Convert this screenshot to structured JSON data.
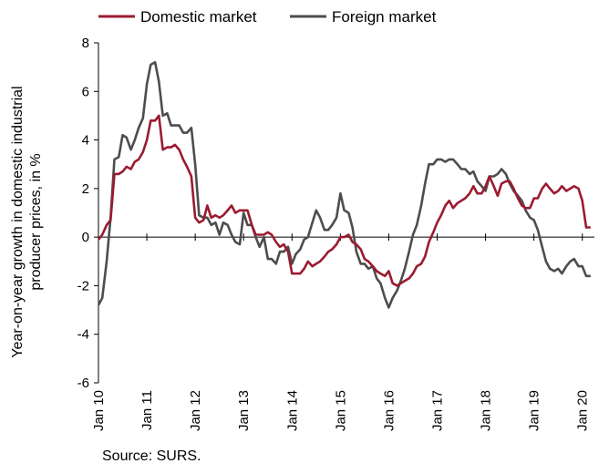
{
  "chart_data": {
    "type": "line",
    "ylabel_lines": [
      "Year-on-year growth in domestic industrial",
      "producer prices, in %"
    ],
    "ylim": [
      -6,
      8
    ],
    "yticks": [
      -6,
      -4,
      -2,
      0,
      2,
      4,
      6,
      8
    ],
    "xlim": [
      2010,
      2020.25
    ],
    "xticks": [
      {
        "value": 2010,
        "label": "Jan 10"
      },
      {
        "value": 2011,
        "label": "Jan 11"
      },
      {
        "value": 2012,
        "label": "Jan 12"
      },
      {
        "value": 2013,
        "label": "Jan 13"
      },
      {
        "value": 2014,
        "label": "Jan 14"
      },
      {
        "value": 2015,
        "label": "Jan 15"
      },
      {
        "value": 2016,
        "label": "Jan 16"
      },
      {
        "value": 2017,
        "label": "Jan 17"
      },
      {
        "value": 2018,
        "label": "Jan 18"
      },
      {
        "value": 2019,
        "label": "Jan 19"
      },
      {
        "value": 2020,
        "label": "Jan 20"
      }
    ],
    "grid": false,
    "legend_position": "top-left",
    "series": [
      {
        "name": "Domestic market",
        "color": "#9b1b30",
        "x": [
          2010.0,
          2010.08,
          2010.17,
          2010.25,
          2010.33,
          2010.42,
          2010.5,
          2010.58,
          2010.67,
          2010.75,
          2010.83,
          2010.92,
          2011.0,
          2011.08,
          2011.17,
          2011.25,
          2011.33,
          2011.42,
          2011.5,
          2011.58,
          2011.67,
          2011.75,
          2011.83,
          2011.92,
          2012.0,
          2012.08,
          2012.17,
          2012.25,
          2012.33,
          2012.42,
          2012.5,
          2012.58,
          2012.67,
          2012.75,
          2012.83,
          2012.92,
          2013.0,
          2013.08,
          2013.17,
          2013.25,
          2013.33,
          2013.42,
          2013.5,
          2013.58,
          2013.67,
          2013.75,
          2013.83,
          2013.92,
          2014.0,
          2014.08,
          2014.17,
          2014.25,
          2014.33,
          2014.42,
          2014.5,
          2014.58,
          2014.67,
          2014.75,
          2014.83,
          2014.92,
          2015.0,
          2015.08,
          2015.17,
          2015.25,
          2015.33,
          2015.42,
          2015.5,
          2015.58,
          2015.67,
          2015.75,
          2015.83,
          2015.92,
          2016.0,
          2016.08,
          2016.17,
          2016.25,
          2016.33,
          2016.42,
          2016.5,
          2016.58,
          2016.67,
          2016.75,
          2016.83,
          2016.92,
          2017.0,
          2017.08,
          2017.17,
          2017.25,
          2017.33,
          2017.42,
          2017.5,
          2017.58,
          2017.67,
          2017.75,
          2017.83,
          2017.92,
          2018.0,
          2018.08,
          2018.17,
          2018.25,
          2018.33,
          2018.42,
          2018.5,
          2018.58,
          2018.67,
          2018.75,
          2018.83,
          2018.92,
          2019.0,
          2019.08,
          2019.17,
          2019.25,
          2019.33,
          2019.42,
          2019.5,
          2019.58,
          2019.67,
          2019.75,
          2019.83,
          2019.92,
          2020.0,
          2020.08,
          2020.17
        ],
        "y": [
          -0.1,
          0.1,
          0.5,
          0.7,
          2.6,
          2.6,
          2.7,
          2.9,
          2.8,
          3.1,
          3.2,
          3.5,
          4.0,
          4.8,
          4.8,
          5.0,
          3.6,
          3.7,
          3.7,
          3.8,
          3.6,
          3.2,
          2.9,
          2.5,
          0.8,
          0.6,
          0.7,
          1.3,
          0.8,
          0.9,
          0.8,
          0.9,
          1.1,
          1.3,
          1.0,
          1.1,
          1.1,
          1.1,
          0.5,
          0.1,
          0.1,
          0.1,
          0.2,
          0.1,
          -0.2,
          -0.4,
          -0.3,
          -0.6,
          -1.5,
          -1.5,
          -1.5,
          -1.3,
          -1.0,
          -1.2,
          -1.1,
          -1.0,
          -0.8,
          -0.6,
          -0.5,
          -0.3,
          0.0,
          0.0,
          0.1,
          -0.2,
          -0.3,
          -0.5,
          -0.9,
          -1.0,
          -1.2,
          -1.4,
          -1.5,
          -1.6,
          -1.4,
          -1.9,
          -2.0,
          -1.9,
          -1.8,
          -1.7,
          -1.5,
          -1.2,
          -1.1,
          -0.8,
          -0.2,
          0.2,
          0.6,
          0.9,
          1.3,
          1.5,
          1.2,
          1.4,
          1.5,
          1.6,
          1.8,
          2.1,
          1.8,
          1.8,
          2.1,
          2.5,
          2.1,
          1.7,
          2.2,
          2.3,
          2.3,
          2.0,
          1.6,
          1.3,
          1.2,
          1.2,
          1.6,
          1.6,
          2.0,
          2.2,
          2.0,
          1.8,
          1.9,
          2.1,
          1.9,
          2.0,
          2.1,
          2.0,
          1.5,
          0.4,
          0.4
        ]
      },
      {
        "name": "Foreign market",
        "color": "#4d4d4d",
        "x": [
          2010.0,
          2010.08,
          2010.17,
          2010.25,
          2010.33,
          2010.42,
          2010.5,
          2010.58,
          2010.67,
          2010.75,
          2010.83,
          2010.92,
          2011.0,
          2011.08,
          2011.17,
          2011.25,
          2011.33,
          2011.42,
          2011.5,
          2011.58,
          2011.67,
          2011.75,
          2011.83,
          2011.92,
          2012.0,
          2012.08,
          2012.17,
          2012.25,
          2012.33,
          2012.42,
          2012.5,
          2012.58,
          2012.67,
          2012.75,
          2012.83,
          2012.92,
          2013.0,
          2013.08,
          2013.17,
          2013.25,
          2013.33,
          2013.42,
          2013.5,
          2013.58,
          2013.67,
          2013.75,
          2013.83,
          2013.92,
          2014.0,
          2014.08,
          2014.17,
          2014.25,
          2014.33,
          2014.42,
          2014.5,
          2014.58,
          2014.67,
          2014.75,
          2014.83,
          2014.92,
          2015.0,
          2015.08,
          2015.17,
          2015.25,
          2015.33,
          2015.42,
          2015.5,
          2015.58,
          2015.67,
          2015.75,
          2015.83,
          2015.92,
          2016.0,
          2016.08,
          2016.17,
          2016.25,
          2016.33,
          2016.42,
          2016.5,
          2016.58,
          2016.67,
          2016.75,
          2016.83,
          2016.92,
          2017.0,
          2017.08,
          2017.17,
          2017.25,
          2017.33,
          2017.42,
          2017.5,
          2017.58,
          2017.67,
          2017.75,
          2017.83,
          2017.92,
          2018.0,
          2018.08,
          2018.17,
          2018.25,
          2018.33,
          2018.42,
          2018.5,
          2018.58,
          2018.67,
          2018.75,
          2018.83,
          2018.92,
          2019.0,
          2019.08,
          2019.17,
          2019.25,
          2019.33,
          2019.42,
          2019.5,
          2019.58,
          2019.67,
          2019.75,
          2019.83,
          2019.92,
          2020.0,
          2020.08,
          2020.17
        ],
        "y": [
          -2.8,
          -2.5,
          -1.0,
          0.8,
          3.2,
          3.3,
          4.2,
          4.1,
          3.6,
          4.0,
          4.5,
          4.9,
          6.3,
          7.1,
          7.2,
          6.4,
          5.0,
          5.1,
          4.6,
          4.6,
          4.6,
          4.3,
          4.3,
          4.5,
          3.0,
          0.9,
          0.8,
          0.8,
          0.5,
          0.6,
          0.1,
          0.6,
          0.5,
          0.1,
          -0.2,
          -0.3,
          1.0,
          0.5,
          0.5,
          0.0,
          -0.4,
          0.0,
          -0.9,
          -0.9,
          -1.1,
          -0.6,
          -0.6,
          -0.4,
          -1.1,
          -0.7,
          -0.5,
          -0.1,
          0.0,
          0.6,
          1.1,
          0.8,
          0.3,
          0.3,
          0.5,
          0.8,
          1.8,
          1.1,
          1.0,
          0.4,
          -0.6,
          -1.1,
          -1.1,
          -1.3,
          -1.2,
          -1.7,
          -1.9,
          -2.5,
          -2.9,
          -2.5,
          -2.2,
          -1.8,
          -1.3,
          -0.6,
          0.1,
          0.5,
          1.3,
          2.2,
          3.0,
          3.0,
          3.2,
          3.2,
          3.1,
          3.2,
          3.2,
          3.0,
          2.8,
          2.8,
          2.6,
          2.7,
          2.3,
          2.1,
          1.9,
          2.5,
          2.5,
          2.6,
          2.8,
          2.6,
          2.2,
          1.9,
          1.7,
          1.5,
          1.1,
          0.8,
          0.7,
          0.3,
          -0.4,
          -1.0,
          -1.3,
          -1.4,
          -1.3,
          -1.5,
          -1.2,
          -1.0,
          -0.9,
          -1.2,
          -1.2,
          -1.6,
          -1.6
        ]
      }
    ]
  },
  "source": "Source: SURS."
}
